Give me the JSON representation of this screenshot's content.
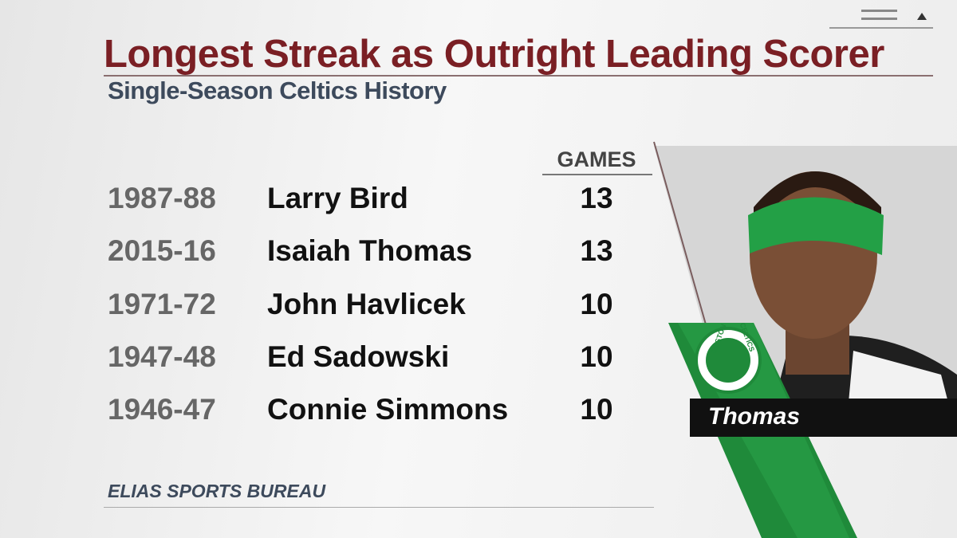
{
  "header": {
    "title": "Longest Streak as Outright Leading Scorer",
    "subtitle": "Single-Season Celtics History"
  },
  "table": {
    "columns": [
      "GAMES"
    ],
    "rows": [
      [
        "1987-88",
        "Larry Bird",
        13
      ],
      [
        "2015-16",
        "Isaiah Thomas",
        13
      ],
      [
        "1971-72",
        "John Havlicek",
        10
      ],
      [
        "1947-48",
        "Ed Sadowski",
        10
      ],
      [
        "1946-47",
        "Connie Simmons",
        10
      ]
    ]
  },
  "player": {
    "caption": "Thomas",
    "logo_top": "BOSTON",
    "logo_right": "CELTICS"
  },
  "source": "ELIAS SPORTS BUREAU"
}
